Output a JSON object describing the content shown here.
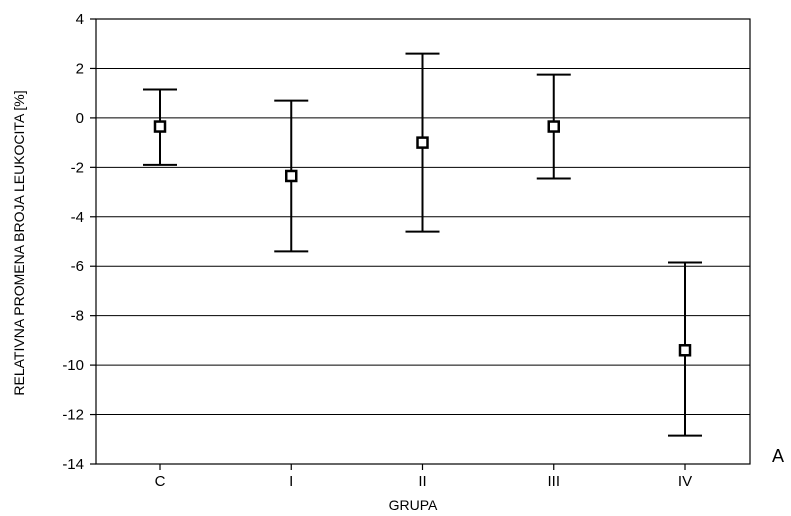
{
  "chart_data": {
    "type": "errorbar",
    "panel_label": "A",
    "xlabel": "GRUPA",
    "ylabel": "RELATIVNA PROMENA BROJA LEUKOCITA [%]",
    "categories": [
      "C",
      "I",
      "II",
      "III",
      "IV"
    ],
    "means": [
      -0.35,
      -2.35,
      -1.0,
      -0.35,
      -9.4
    ],
    "lower": [
      -1.9,
      -5.4,
      -4.6,
      -2.45,
      -12.85
    ],
    "upper": [
      1.15,
      0.7,
      2.6,
      1.75,
      -5.85
    ],
    "ylim": [
      -14,
      4
    ],
    "yticks": [
      4,
      2,
      0,
      -2,
      -4,
      -6,
      -8,
      -10,
      -12,
      -14
    ],
    "grid": true,
    "colors": {
      "line": "#000000",
      "marker_fill": "#ffffff"
    }
  }
}
